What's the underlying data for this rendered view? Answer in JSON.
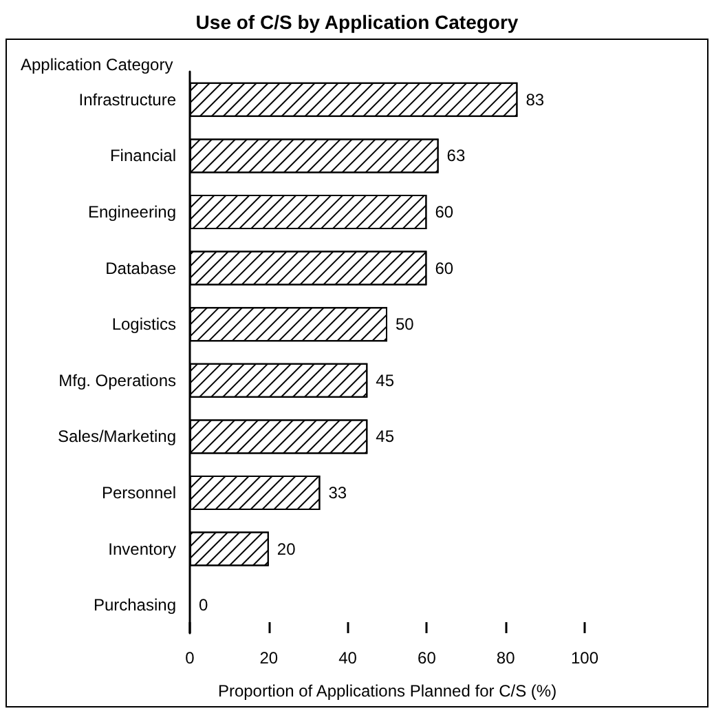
{
  "chart_data": {
    "type": "bar",
    "orientation": "horizontal",
    "title": "Use of C/S by Application Category",
    "ylabel": "Application Category",
    "xlabel": "Proportion of Applications Planned for C/S (%)",
    "categories": [
      "Infrastructure",
      "Financial",
      "Engineering",
      "Database",
      "Logistics",
      "Mfg. Operations",
      "Sales/Marketing",
      "Personnel",
      "Inventory",
      "Purchasing"
    ],
    "values": [
      83,
      63,
      60,
      60,
      50,
      45,
      45,
      33,
      20,
      0
    ],
    "color": "#000000",
    "xlim": [
      0,
      100
    ],
    "xticks": [
      0,
      20,
      40,
      60,
      80,
      100
    ],
    "data_labels": true,
    "grid": false
  }
}
